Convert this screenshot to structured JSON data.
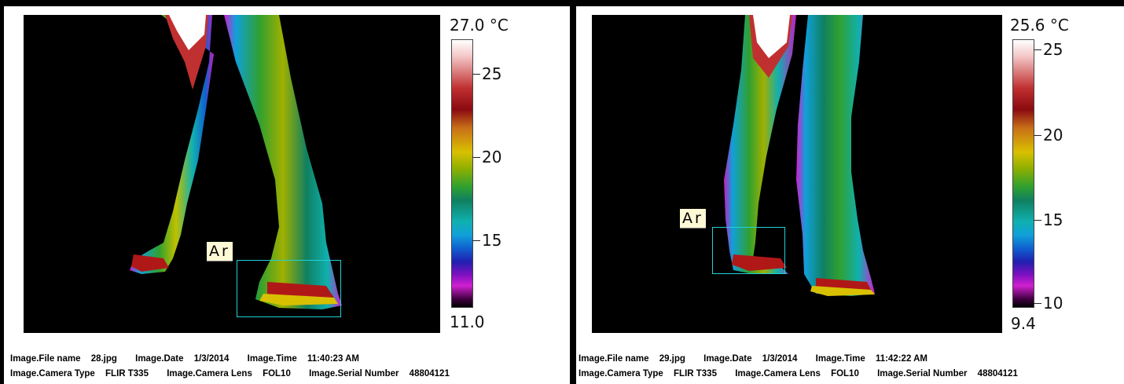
{
  "panels": [
    {
      "scale_max": "27.0 °C",
      "scale_min": "11.0",
      "ticks": [
        "25",
        "20",
        "15"
      ],
      "roi_label": "Ar",
      "info_line1": [
        {
          "label": "Image.File name",
          "value": "28.jpg"
        },
        {
          "label": "Image.Date",
          "value": "1/3/2014"
        },
        {
          "label": "Image.Time",
          "value": "11:40:23 AM"
        }
      ],
      "info_line2": [
        {
          "label": "Image.Camera Type",
          "value": "FLIR T335"
        },
        {
          "label": "Image.Camera Lens",
          "value": "FOL10"
        },
        {
          "label": "Image.Serial Number",
          "value": "48804121"
        }
      ]
    },
    {
      "scale_max": "25.6 °C",
      "scale_min": "9.4",
      "ticks": [
        "25",
        "20",
        "15",
        "10"
      ],
      "roi_label": "Ar",
      "info_line1": [
        {
          "label": "Image.File name",
          "value": "29.jpg"
        },
        {
          "label": "Image.Date",
          "value": "1/3/2014"
        },
        {
          "label": "Image.Time",
          "value": "11:42:22 AM"
        }
      ],
      "info_line2": [
        {
          "label": "Image.Camera Type",
          "value": "FLIR T335"
        },
        {
          "label": "Image.Camera Lens",
          "value": "FOL10"
        },
        {
          "label": "Image.Serial Number",
          "value": "48804121"
        }
      ]
    }
  ],
  "colors": {
    "roi_box": "#22d0d8",
    "label_bg": "#fff9d6",
    "background": "#000000"
  }
}
